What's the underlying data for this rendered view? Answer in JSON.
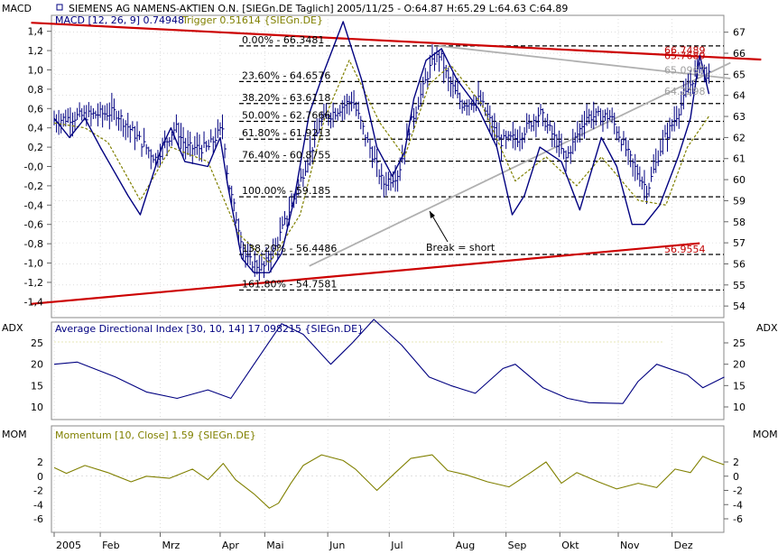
{
  "colors": {
    "background": "#ffffff",
    "panel_border": "#8a8a8a",
    "grid": "#c8c8c8",
    "price_bars": "#000080",
    "macd_line": "#000080",
    "trigger_line": "#808000",
    "trend_red": "#cc0000",
    "trend_gray": "#b0b0b0",
    "momentum_line": "#808000",
    "adx_line": "#000080",
    "fib_lines": "#000000",
    "label_text": "#000000",
    "target_label": "#c00000",
    "gray_label": "#a0a0a0",
    "legend_text": "#000080"
  },
  "chart_data": [
    {
      "type": "candlestick",
      "panel": "main",
      "title": "SIEMENS AG NAMENS-AKTIEN O.N. [SIEGn.DE  Taglich] 2005/11/25 - O:64.87 H:65.29 L:64.63 C:64.89",
      "left_axis_label": "MACD",
      "right_ylim": [
        54,
        67
      ],
      "right_ticks": [
        "67",
        "66",
        "65",
        "64",
        "63",
        "62",
        "61",
        "60",
        "59",
        "58",
        "57",
        "56",
        "55",
        "54"
      ],
      "left_ylim": [
        -1.5,
        1.5
      ],
      "left_ticks": [
        "1,4",
        "1,2",
        "1,0",
        "0,8",
        "0,6",
        "0,4",
        "0,2",
        "-0,0",
        "-0,2",
        "-0,4",
        "-0,6",
        "-0,8",
        "-1,0",
        "-1,2",
        "-1,4"
      ],
      "x_ticks": [
        "2005",
        "Feb",
        "Mrz",
        "Apr",
        "Mai",
        "Jun",
        "Jul",
        "Aug",
        "Sep",
        "Okt",
        "Nov",
        "Dez"
      ],
      "price_path": [
        [
          0,
          62.8
        ],
        [
          15,
          63.0
        ],
        [
          40,
          63.2
        ],
        [
          66,
          61.0
        ],
        [
          79,
          62.5
        ],
        [
          86,
          61.5
        ],
        [
          100,
          61.5
        ],
        [
          110,
          62.5
        ],
        [
          113,
          60.0
        ],
        [
          116,
          59.0
        ],
        [
          125,
          56.2
        ],
        [
          136,
          55.8
        ],
        [
          144,
          56.8
        ],
        [
          158,
          59.5
        ],
        [
          174,
          62.8
        ],
        [
          194,
          63.8
        ],
        [
          204,
          61.8
        ],
        [
          214,
          59.8
        ],
        [
          224,
          60.3
        ],
        [
          231,
          62.4
        ],
        [
          245,
          65.4
        ],
        [
          251,
          66.0
        ],
        [
          256,
          64.8
        ],
        [
          265,
          63.6
        ],
        [
          277,
          63.8
        ],
        [
          290,
          61.8
        ],
        [
          302,
          62.0
        ],
        [
          316,
          63.2
        ],
        [
          333,
          61.0
        ],
        [
          346,
          63.0
        ],
        [
          362,
          63.0
        ],
        [
          376,
          60.8
        ],
        [
          386,
          59.5
        ],
        [
          396,
          61.8
        ],
        [
          402,
          62.6
        ],
        [
          412,
          64.2
        ],
        [
          420,
          65.5
        ],
        [
          426,
          64.9
        ]
      ],
      "fib_levels": [
        {
          "label": "0.00% - 66.3481",
          "value": 66.3481
        },
        {
          "label": "23.60% - 64.6576",
          "value": 64.6576
        },
        {
          "label": "38.20% - 63.6118",
          "value": 63.6118
        },
        {
          "label": "50.00% - 62.7666",
          "value": 62.7666
        },
        {
          "label": "61.80% - 61.9213",
          "value": 61.9213
        },
        {
          "label": "76.40% - 60.8755",
          "value": 60.8755
        },
        {
          "label": "100.00% - 59.185",
          "value": 59.185
        },
        {
          "label": "138.20% - 56.4486",
          "value": 56.4486
        },
        {
          "label": "161.80% - 54.7581",
          "value": 54.7581
        }
      ],
      "target_labels": [
        {
          "label": "66.7489",
          "value": 66.15,
          "color": "red"
        },
        {
          "label": "65.7689",
          "value": 65.9,
          "color": "red"
        },
        {
          "label": "65.0967",
          "value": 65.2,
          "color": "gray"
        },
        {
          "label": "64.2298",
          "value": 64.2,
          "color": "gray"
        },
        {
          "label": "56.9554",
          "value": 56.7,
          "color": "red"
        }
      ],
      "annotations": [
        {
          "text": "Break = short"
        }
      ],
      "trendlines": [
        {
          "name": "upper-red",
          "points": [
            [
              -15,
              67.45
            ],
            [
              460,
              65.7
            ]
          ]
        },
        {
          "name": "lower-red",
          "points": [
            [
              -15,
              54.1
            ],
            [
              420,
              56.98
            ]
          ]
        },
        {
          "name": "gray-resistance",
          "points": [
            [
              250,
              66.35
            ],
            [
              440,
              64.8
            ]
          ]
        },
        {
          "name": "gray-support",
          "points": [
            [
              166,
              55.9
            ],
            [
              440,
              65.55
            ]
          ]
        }
      ]
    },
    {
      "type": "line",
      "panel": "main",
      "legend": "MACD [12, 26, 9] 0.74948",
      "legend2": "Trigger 0.51614 {SIEGn.DE}",
      "macd": [
        [
          0,
          0.5
        ],
        [
          10,
          0.3
        ],
        [
          20,
          0.5
        ],
        [
          30,
          0.2
        ],
        [
          48,
          -0.3
        ],
        [
          56,
          -0.5
        ],
        [
          70,
          0.2
        ],
        [
          76,
          0.4
        ],
        [
          85,
          0.05
        ],
        [
          100,
          0.0
        ],
        [
          108,
          0.3
        ],
        [
          113,
          -0.2
        ],
        [
          122,
          -0.95
        ],
        [
          130,
          -1.1
        ],
        [
          140,
          -1.1
        ],
        [
          148,
          -0.9
        ],
        [
          156,
          -0.35
        ],
        [
          166,
          0.55
        ],
        [
          176,
          1.0
        ],
        [
          188,
          1.5
        ],
        [
          200,
          0.9
        ],
        [
          210,
          0.2
        ],
        [
          220,
          -0.1
        ],
        [
          228,
          0.15
        ],
        [
          234,
          0.7
        ],
        [
          242,
          1.1
        ],
        [
          252,
          1.22
        ],
        [
          262,
          0.9
        ],
        [
          276,
          0.6
        ],
        [
          288,
          0.2
        ],
        [
          298,
          -0.5
        ],
        [
          306,
          -0.3
        ],
        [
          316,
          0.2
        ],
        [
          330,
          0.05
        ],
        [
          342,
          -0.45
        ],
        [
          356,
          0.3
        ],
        [
          366,
          0.0
        ],
        [
          376,
          -0.6
        ],
        [
          384,
          -0.6
        ],
        [
          394,
          -0.4
        ],
        [
          406,
          0.1
        ],
        [
          414,
          0.5
        ],
        [
          420,
          1.15
        ],
        [
          426,
          0.75
        ]
      ],
      "trigger": [
        [
          0,
          0.45
        ],
        [
          20,
          0.4
        ],
        [
          35,
          0.25
        ],
        [
          56,
          -0.35
        ],
        [
          76,
          0.2
        ],
        [
          100,
          0.05
        ],
        [
          120,
          -0.7
        ],
        [
          140,
          -1.0
        ],
        [
          160,
          -0.5
        ],
        [
          176,
          0.5
        ],
        [
          192,
          1.1
        ],
        [
          212,
          0.45
        ],
        [
          228,
          0.1
        ],
        [
          244,
          0.85
        ],
        [
          258,
          1.05
        ],
        [
          278,
          0.65
        ],
        [
          300,
          -0.15
        ],
        [
          320,
          0.1
        ],
        [
          340,
          -0.2
        ],
        [
          356,
          0.1
        ],
        [
          380,
          -0.35
        ],
        [
          398,
          -0.4
        ],
        [
          412,
          0.2
        ],
        [
          426,
          0.52
        ]
      ]
    },
    {
      "type": "line",
      "panel": "adx",
      "axis_label": "ADX",
      "legend": "Average Directional Index [30, 10, 14] 17.098215 {SIEGn.DE}",
      "ticks": [
        "25",
        "20",
        "15",
        "10"
      ],
      "ylim": [
        5,
        32
      ],
      "values": [
        [
          0,
          20
        ],
        [
          15,
          20.5
        ],
        [
          40,
          17
        ],
        [
          60,
          13.5
        ],
        [
          80,
          12
        ],
        [
          100,
          14
        ],
        [
          115,
          12
        ],
        [
          130,
          20
        ],
        [
          148,
          29.5
        ],
        [
          162,
          27
        ],
        [
          180,
          20
        ],
        [
          194,
          25
        ],
        [
          208,
          30.5
        ],
        [
          226,
          24.5
        ],
        [
          244,
          17
        ],
        [
          258,
          15
        ],
        [
          274,
          13.2
        ],
        [
          292,
          19
        ],
        [
          300,
          20
        ],
        [
          318,
          14.5
        ],
        [
          334,
          12
        ],
        [
          348,
          11
        ],
        [
          370,
          10.8
        ],
        [
          380,
          16
        ],
        [
          392,
          20
        ],
        [
          412,
          17.5
        ],
        [
          422,
          14.5
        ],
        [
          436,
          17
        ]
      ]
    },
    {
      "type": "line",
      "panel": "momentum",
      "axis_label": "MOM",
      "legend": "Momentum [10, Close] 1.59 {SIEGn.DE}",
      "ticks": [
        "2",
        "0",
        "-2",
        "-4",
        "-6"
      ],
      "ylim": [
        -7,
        5
      ],
      "values": [
        [
          0,
          1.2
        ],
        [
          8,
          0.4
        ],
        [
          20,
          1.5
        ],
        [
          35,
          0.5
        ],
        [
          50,
          -0.8
        ],
        [
          60,
          0.0
        ],
        [
          75,
          -0.3
        ],
        [
          90,
          1.0
        ],
        [
          100,
          -0.5
        ],
        [
          110,
          1.8
        ],
        [
          118,
          -0.5
        ],
        [
          130,
          -2.5
        ],
        [
          140,
          -4.5
        ],
        [
          146,
          -3.8
        ],
        [
          154,
          -1.0
        ],
        [
          162,
          1.5
        ],
        [
          174,
          3.0
        ],
        [
          188,
          2.2
        ],
        [
          196,
          1.0
        ],
        [
          210,
          -2.0
        ],
        [
          222,
          0.5
        ],
        [
          232,
          2.5
        ],
        [
          246,
          3.0
        ],
        [
          256,
          0.8
        ],
        [
          268,
          0.2
        ],
        [
          282,
          -0.8
        ],
        [
          296,
          -1.5
        ],
        [
          310,
          0.5
        ],
        [
          320,
          2.0
        ],
        [
          330,
          -1.0
        ],
        [
          340,
          0.5
        ],
        [
          354,
          -0.8
        ],
        [
          366,
          -1.8
        ],
        [
          380,
          -1.0
        ],
        [
          392,
          -1.6
        ],
        [
          404,
          1.0
        ],
        [
          414,
          0.5
        ],
        [
          422,
          2.8
        ],
        [
          428,
          2.2
        ],
        [
          436,
          1.6
        ]
      ]
    }
  ]
}
